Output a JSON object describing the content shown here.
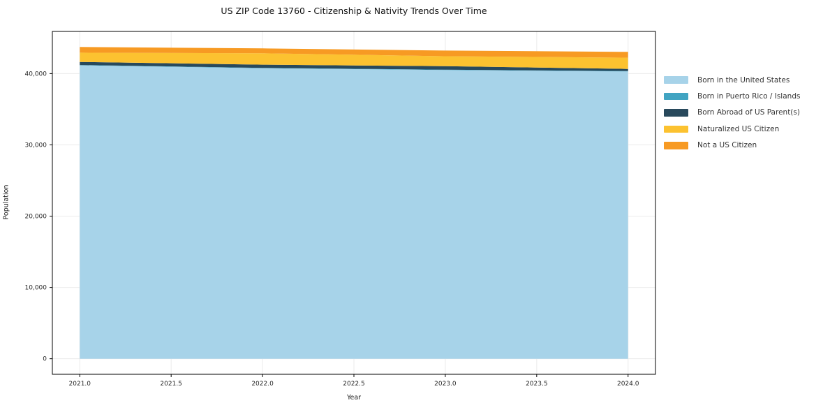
{
  "figure": {
    "background": "#ffffff"
  },
  "chart_data": {
    "type": "area",
    "stacked": true,
    "title": "US ZIP Code 13760 - Citizenship & Nativity Trends Over Time",
    "xlabel": "Year",
    "ylabel": "Population",
    "x": [
      2021,
      2022,
      2023,
      2024
    ],
    "series": [
      {
        "name": "Born in the United States",
        "color": "#a7d3e9",
        "values": [
          41150,
          40750,
          40500,
          40300
        ]
      },
      {
        "name": "Born in Puerto Rico / Islands",
        "color": "#41a4c2",
        "values": [
          50,
          50,
          50,
          60
        ]
      },
      {
        "name": "Born Abroad of US Parent(s)",
        "color": "#28495c",
        "values": [
          430,
          450,
          490,
          300
        ]
      },
      {
        "name": "Naturalized US Citizen",
        "color": "#fcc230",
        "values": [
          1310,
          1600,
          1400,
          1570
        ]
      },
      {
        "name": "Not a US Citizen",
        "color": "#f79a23",
        "values": [
          790,
          690,
          790,
          815
        ]
      }
    ],
    "xlim": [
      2020.85,
      2024.15
    ],
    "ylim": [
      -2186,
      45916
    ],
    "xticks": {
      "values": [
        2021.0,
        2021.5,
        2022.0,
        2022.5,
        2023.0,
        2023.5,
        2024.0
      ],
      "labels": [
        "2021.0",
        "2021.5",
        "2022.0",
        "2022.5",
        "2023.0",
        "2023.5",
        "2024.0"
      ]
    },
    "yticks": {
      "values": [
        0,
        10000,
        20000,
        30000,
        40000
      ],
      "labels": [
        "0",
        "10,000",
        "20,000",
        "30,000",
        "40,000"
      ]
    },
    "grid": true,
    "legend_position": "right-outside"
  },
  "colors": {
    "grid": "#ebebeb",
    "spine": "#000000",
    "tick_text": "#262626",
    "axis_text": "#1a1a1a"
  }
}
